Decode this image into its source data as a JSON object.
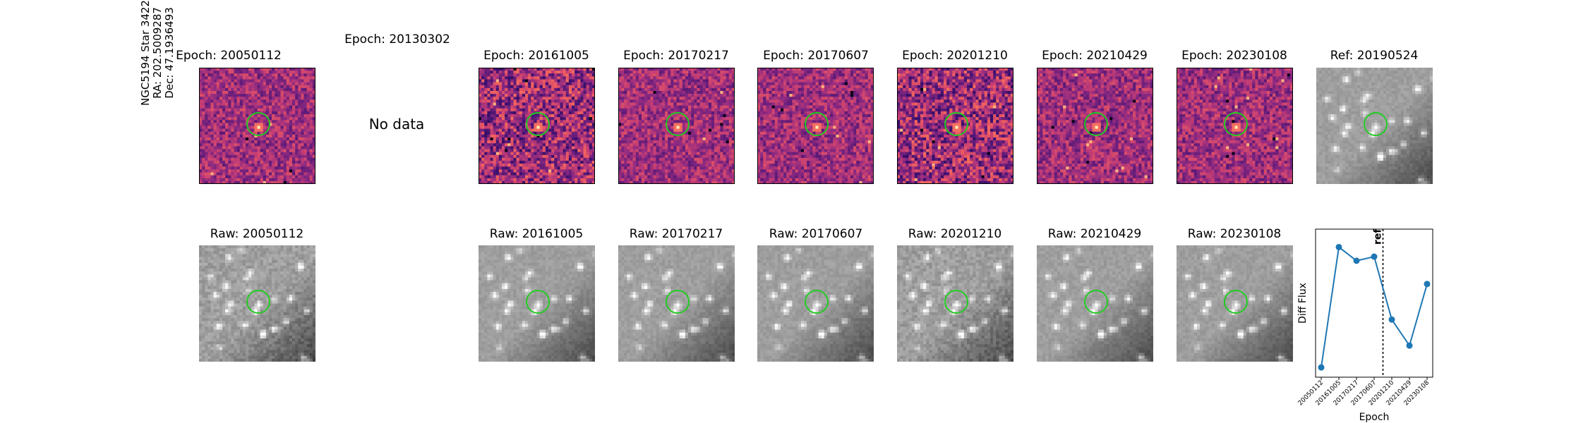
{
  "star_info": {
    "name": "NGC5194 Star 3422",
    "ra": "RA: 202.5009287",
    "dec": "Dec: 47.1936493"
  },
  "top_row": [
    {
      "title": "Epoch: 20050112",
      "kind": "diff"
    },
    {
      "title": "Epoch: 20130302",
      "kind": "nodata",
      "text": "No data"
    },
    {
      "title": "Epoch: 20161005",
      "kind": "diff"
    },
    {
      "title": "Epoch: 20170217",
      "kind": "diff"
    },
    {
      "title": "Epoch: 20170607",
      "kind": "diff"
    },
    {
      "title": "Epoch: 20201210",
      "kind": "diff"
    },
    {
      "title": "Epoch: 20210429",
      "kind": "diff"
    },
    {
      "title": "Epoch: 20230108",
      "kind": "diff"
    },
    {
      "title": "Ref: 20190524",
      "kind": "ref"
    }
  ],
  "bottom_row": [
    {
      "title": "Raw: 20050112",
      "kind": "raw"
    },
    {
      "title": "",
      "kind": "empty"
    },
    {
      "title": "Raw: 20161005",
      "kind": "raw"
    },
    {
      "title": "Raw: 20170217",
      "kind": "raw"
    },
    {
      "title": "Raw: 20170607",
      "kind": "raw"
    },
    {
      "title": "Raw: 20201210",
      "kind": "raw"
    },
    {
      "title": "Raw: 20210429",
      "kind": "raw"
    },
    {
      "title": "Raw: 20230108",
      "kind": "raw"
    }
  ],
  "colors": {
    "circle": "#22cc22",
    "line": "#1f77b4"
  },
  "chart_data": {
    "type": "line",
    "x": [
      "20050112",
      "20161005",
      "20170217",
      "20170607",
      "20201210",
      "20210429",
      "20230108"
    ],
    "values": [
      0.03,
      0.91,
      0.81,
      0.84,
      0.38,
      0.19,
      0.64
    ],
    "xlabel": "Epoch",
    "ylabel": "Diff Flux",
    "ref_marker": {
      "label": "ref",
      "position": 3.5
    },
    "yticks_visible": false
  }
}
